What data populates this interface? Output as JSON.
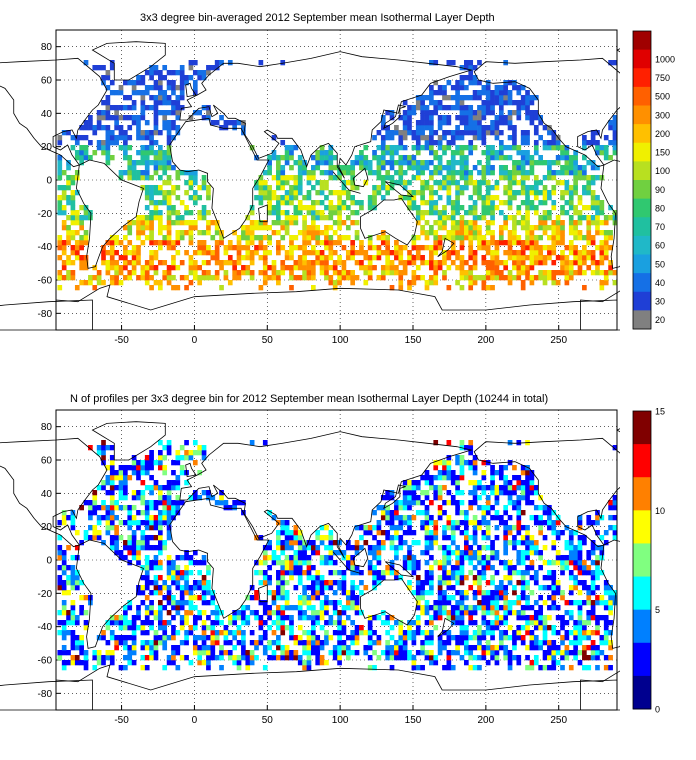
{
  "charts": [
    {
      "title": "3x3 degree bin-averaged 2012 September mean Isothermal Layer Depth",
      "xticks": [
        "-50",
        "0",
        "50",
        "100",
        "150",
        "200",
        "250"
      ],
      "yticks": [
        "80",
        "60",
        "40",
        "20",
        "0",
        "-20",
        "-40",
        "-60",
        "-80"
      ],
      "colorbar_labels": [
        "20",
        "30",
        "40",
        "50",
        "60",
        "70",
        "80",
        "90",
        "100",
        "150",
        "200",
        "300",
        "500",
        "750",
        "1000"
      ],
      "colorbar_colors": [
        "#808080",
        "#1f3fd6",
        "#1570e6",
        "#1aa0e0",
        "#20b8c8",
        "#20c0a0",
        "#30c870",
        "#70d040",
        "#b8e020",
        "#f0f000",
        "#ffc000",
        "#ff9000",
        "#ff6000",
        "#ff2000",
        "#e00000",
        "#a00000"
      ]
    },
    {
      "title": "N of profiles per 3x3 degree bin for 2012 September mean Isothermal Layer Depth  (10244 in total)",
      "xticks": [
        "-50",
        "0",
        "50",
        "100",
        "150",
        "200",
        "250"
      ],
      "yticks": [
        "80",
        "60",
        "40",
        "20",
        "0",
        "-20",
        "-40",
        "-60",
        "-80"
      ],
      "colorbar_labels": [
        "0",
        "5",
        "10",
        "15"
      ],
      "colorbar_colors": [
        "#00008f",
        "#0000ff",
        "#0080ff",
        "#00ffff",
        "#80ff80",
        "#ffff00",
        "#ff8000",
        "#ff0000",
        "#800000"
      ]
    }
  ],
  "chart_data": [
    {
      "type": "heatmap",
      "title": "3x3 degree bin-averaged 2012 September mean Isothermal Layer Depth",
      "xlim": [
        -95,
        290
      ],
      "ylim": [
        -90,
        90
      ],
      "colorbar_ticks": [
        20,
        30,
        40,
        50,
        60,
        70,
        80,
        90,
        100,
        150,
        200,
        300,
        500,
        750,
        1000
      ]
    },
    {
      "type": "heatmap",
      "title": "N of profiles per 3x3 degree bin for 2012 September mean Isothermal Layer Depth  (10244 in total)",
      "total_profiles": 10244,
      "xlim": [
        -95,
        290
      ],
      "ylim": [
        -90,
        90
      ],
      "colorbar_ticks": [
        0,
        5,
        10,
        15
      ]
    }
  ]
}
